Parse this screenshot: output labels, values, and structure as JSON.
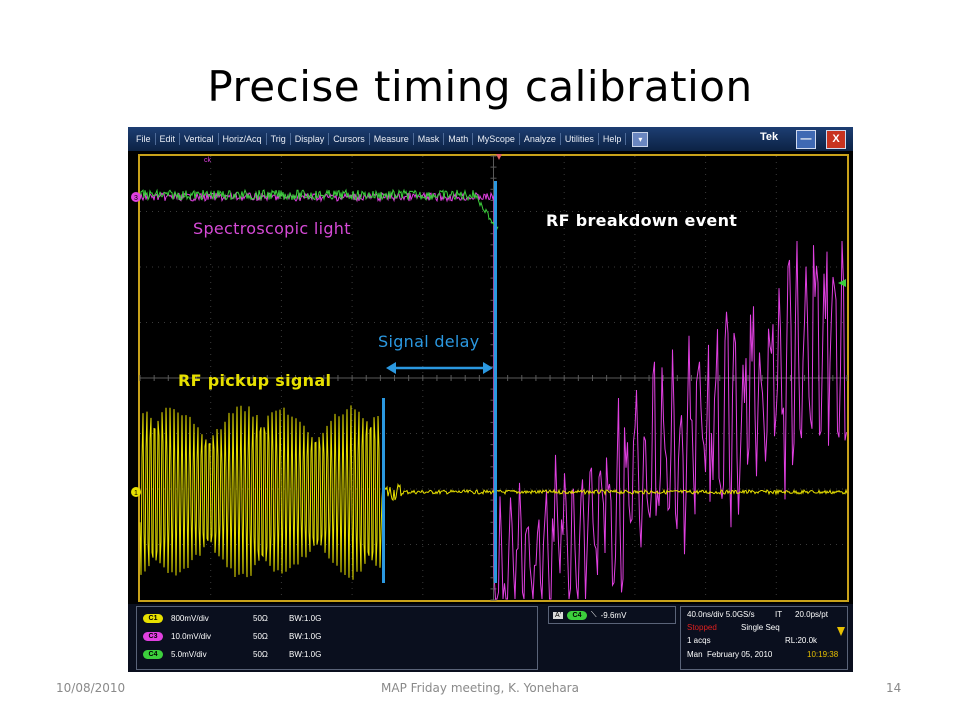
{
  "slide": {
    "title": "Precise timing calibration",
    "footer_date": "10/08/2010",
    "footer_center": "MAP Friday meeting, K. Yonehara",
    "footer_page": "14"
  },
  "scope": {
    "menu": [
      "File",
      "Edit",
      "Vertical",
      "Horiz/Acq",
      "Trig",
      "Display",
      "Cursors",
      "Measure",
      "Mask",
      "Math",
      "MyScope",
      "Analyze",
      "Utilities",
      "Help"
    ],
    "menu_dropdown": "▾",
    "brand": "Tek",
    "minimize": "—",
    "close": "X",
    "ch3_marker": "3",
    "ch1_marker": "1",
    "ch_top_marker": "ck",
    "channels": [
      {
        "chip": "C1",
        "scale": "800mV/div",
        "impedance": "50Ω",
        "bandwidth": "BW:1.0G",
        "color": "#e7e000"
      },
      {
        "chip": "C3",
        "scale": "10.0mV/div",
        "impedance": "50Ω",
        "bandwidth": "BW:1.0G",
        "color": "#e040e0"
      },
      {
        "chip": "C4",
        "scale": "5.0mV/div",
        "impedance": "50Ω",
        "bandwidth": "BW:1.0G",
        "color": "#3ccf3c"
      }
    ],
    "trigger": {
      "a_label": "A'",
      "chip": "C4",
      "slope": "⟍",
      "level": "-9.6mV"
    },
    "acq": {
      "timebase": "40.0ns/div 5.0GS/s",
      "interp": "IT",
      "resolution": "20.0ps/pt",
      "state": "Stopped",
      "mode": "Single Seq",
      "acqs": "1 acqs",
      "record": "RL:20.0k",
      "trigger_mode": "Man",
      "date": "February 05, 2010",
      "time": "10:19:38"
    },
    "colors": {
      "ch1": "#e7e000",
      "ch3": "#e040e0",
      "ch4": "#3ccf3c",
      "annotation": "#2b98e0"
    }
  },
  "annotations": {
    "spectroscopic": "Spectroscopic light",
    "breakdown": "RF breakdown event",
    "delay": "Signal delay",
    "pickup": "RF pickup signal"
  }
}
